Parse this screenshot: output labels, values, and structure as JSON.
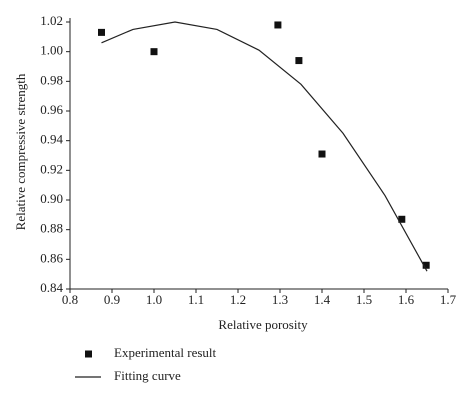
{
  "chart_data": {
    "type": "scatter",
    "x_label": "Relative porosity",
    "y_label": "Relative compressive strength",
    "xlim": [
      0.8,
      1.7
    ],
    "xticks": [
      0.8,
      0.9,
      {
        "value": 1,
        "label": "1.0"
      },
      1.1,
      1.2,
      1.3,
      1.4,
      1.5,
      1.6,
      1.7
    ],
    "ylim": [
      0.84,
      1.02
    ],
    "yticks": [
      0.84,
      0.86,
      0.88,
      {
        "value": 0.9,
        "label": "0.90"
      },
      0.92,
      0.94,
      0.96,
      0.98,
      {
        "value": 1,
        "label": "1.00"
      },
      1.02
    ],
    "legend": "bottom",
    "series": [
      {
        "name": "Experimental result",
        "kind": "points",
        "color": "#111111",
        "x": [
          0.875,
          1.0,
          1.295,
          1.345,
          1.4,
          1.59,
          1.648
        ],
        "values": [
          1.013,
          1.0,
          1.018,
          0.994,
          0.931,
          0.887,
          0.856
        ]
      },
      {
        "name": "Fitting curve",
        "kind": "line",
        "color": "#222222",
        "x": [
          0.875,
          0.95,
          1.05,
          1.15,
          1.25,
          1.35,
          1.45,
          1.55,
          1.65
        ],
        "values": [
          1.006,
          1.015,
          1.02,
          1.015,
          1.001,
          0.978,
          0.945,
          0.903,
          0.852
        ]
      }
    ]
  }
}
